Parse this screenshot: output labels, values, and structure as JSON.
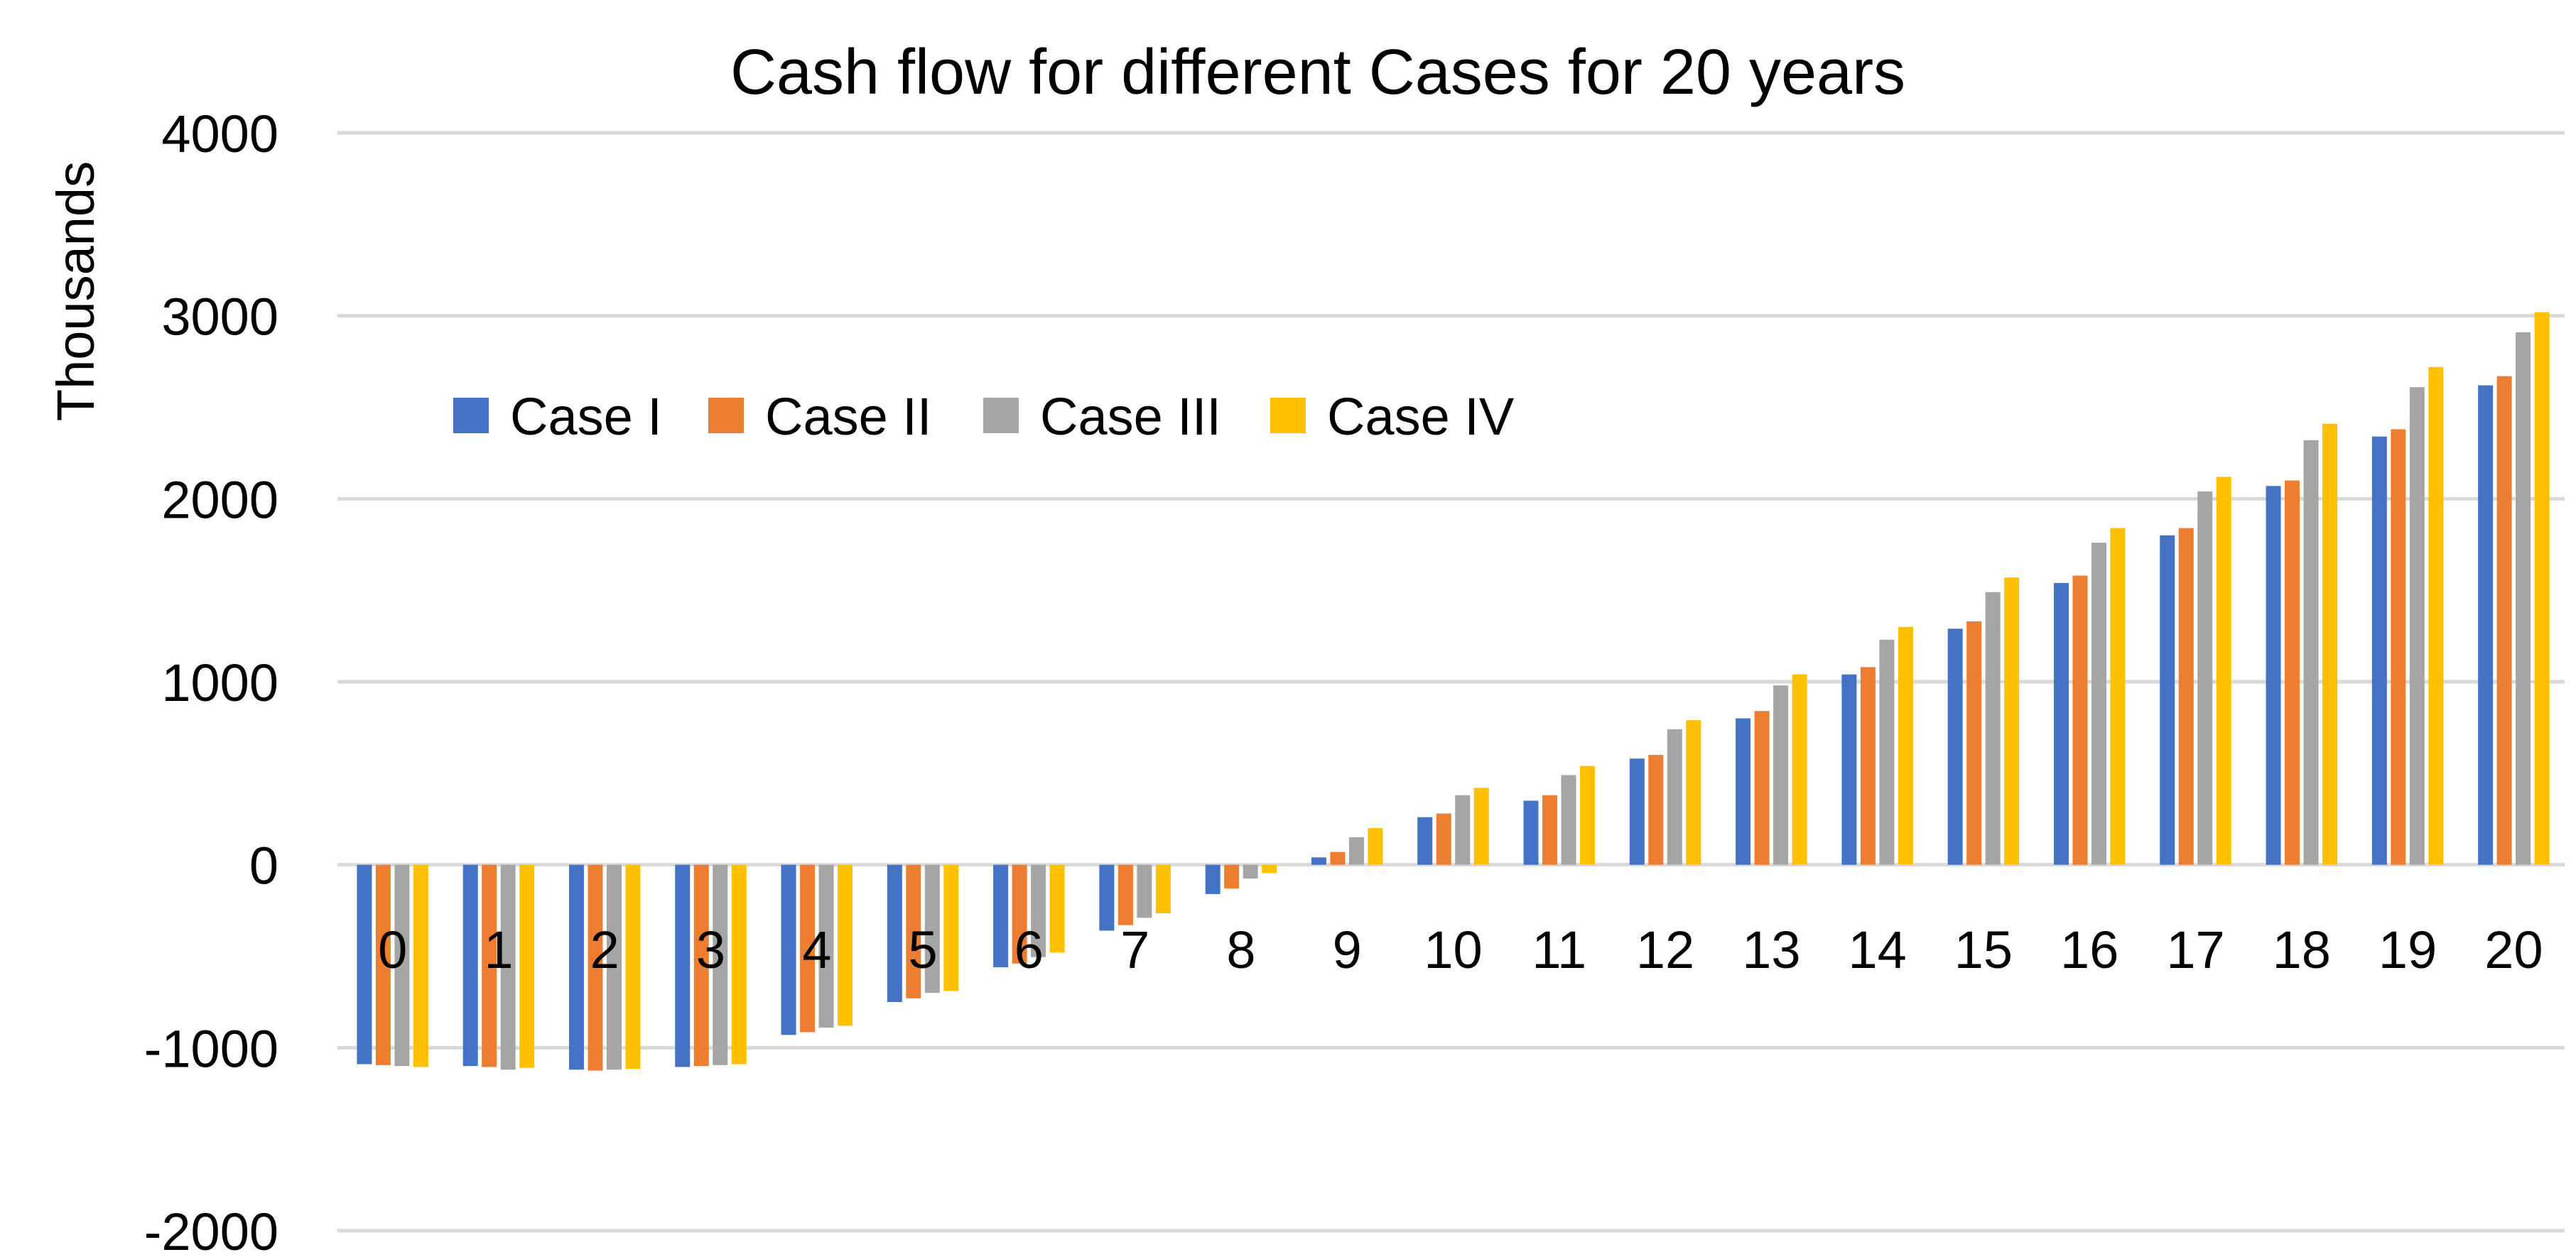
{
  "chart_data": {
    "type": "bar",
    "title": "Cash flow for different Cases for 20 years",
    "xlabel": "",
    "ylabel": "Thousands",
    "ylim": [
      -2000,
      4000
    ],
    "yticks": [
      "4000",
      "3000",
      "2000",
      "1000",
      "0",
      "-1000",
      "-2000"
    ],
    "ytick_values": [
      4000,
      3000,
      2000,
      1000,
      0,
      -1000,
      -2000
    ],
    "grid": true,
    "legend_position": "top-left",
    "categories": [
      "0",
      "1",
      "2",
      "3",
      "4",
      "5",
      "6",
      "7",
      "8",
      "9",
      "10",
      "11",
      "12",
      "13",
      "14",
      "15",
      "16",
      "17",
      "18",
      "19",
      "20"
    ],
    "series": [
      {
        "name": "Case I",
        "color": "#4472C4",
        "values": [
          -1090,
          -1100,
          -1120,
          -1105,
          -930,
          -750,
          -560,
          -360,
          -160,
          40,
          260,
          350,
          580,
          800,
          1040,
          1290,
          1540,
          1800,
          2070,
          2340,
          2620
        ]
      },
      {
        "name": "Case II",
        "color": "#ED7D31",
        "values": [
          -1095,
          -1105,
          -1125,
          -1100,
          -915,
          -730,
          -540,
          -330,
          -130,
          70,
          280,
          380,
          600,
          840,
          1080,
          1330,
          1580,
          1840,
          2100,
          2380,
          2670
        ]
      },
      {
        "name": "Case III",
        "color": "#A5A5A5",
        "values": [
          -1100,
          -1120,
          -1120,
          -1095,
          -890,
          -700,
          -505,
          -290,
          -75,
          150,
          380,
          490,
          740,
          980,
          1230,
          1490,
          1760,
          2040,
          2320,
          2610,
          2910
        ]
      },
      {
        "name": "Case IV",
        "color": "#FFC000",
        "values": [
          -1105,
          -1110,
          -1115,
          -1090,
          -880,
          -690,
          -480,
          -265,
          -45,
          200,
          420,
          540,
          790,
          1040,
          1300,
          1570,
          1840,
          2120,
          2410,
          2720,
          3020
        ]
      }
    ]
  }
}
